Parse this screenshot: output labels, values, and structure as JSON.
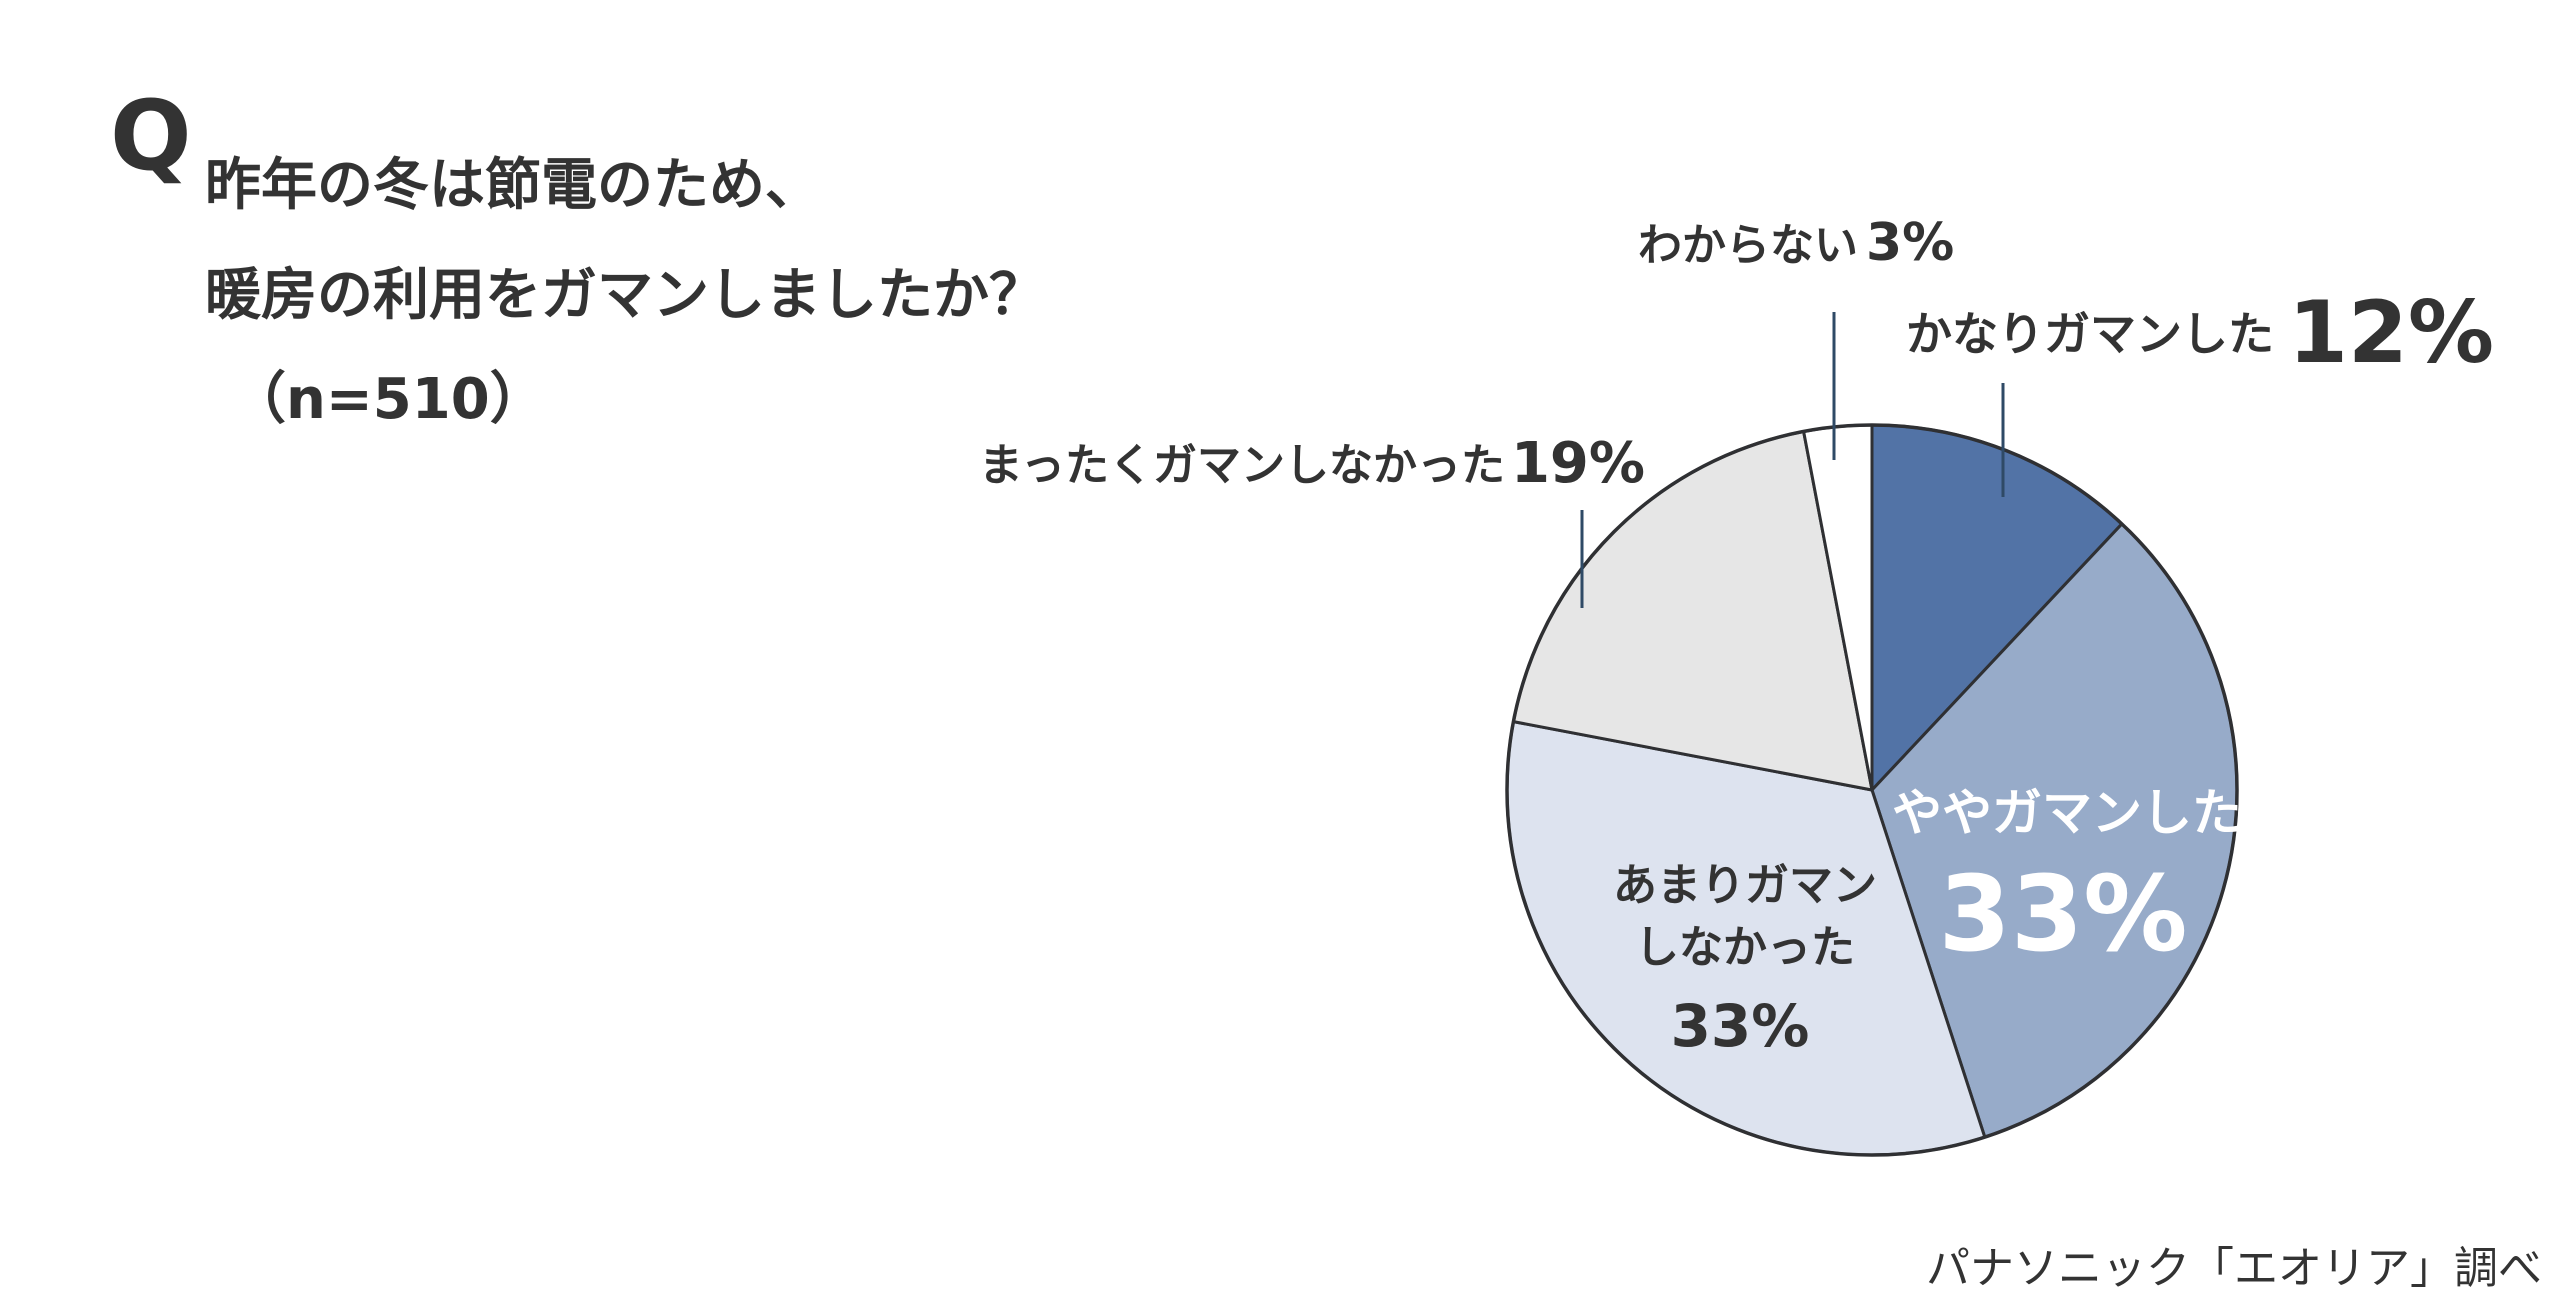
{
  "question": {
    "mark": "Q",
    "line1": "昨年の冬は節電のため、",
    "line2": "暖房の利用をガマンしましたか？",
    "line3": "（n=510）"
  },
  "source": "パナソニック「エオリア」調べ",
  "chart_data": {
    "type": "pie",
    "start": "12 o'clock, clockwise",
    "slices": [
      {
        "label": "かなりガマンした",
        "value": 12,
        "display": "12%",
        "color": "#5273a6"
      },
      {
        "label": "ややガマンした",
        "value": 33,
        "display": "33%",
        "color": "#97abc9"
      },
      {
        "label": "あまりガマンしなかった",
        "label_lines": [
          "あまりガマン",
          "しなかった"
        ],
        "value": 33,
        "display": "33%",
        "color": "#dde3ef"
      },
      {
        "label": "まったくガマンしなかった",
        "value": 19,
        "display": "19%",
        "color": "#e6e6e6"
      },
      {
        "label": "わからない",
        "value": 3,
        "display": "3%",
        "color": "#ffffff"
      }
    ],
    "edge_color": "#2f3033",
    "leader_color": "#2f4a66"
  }
}
